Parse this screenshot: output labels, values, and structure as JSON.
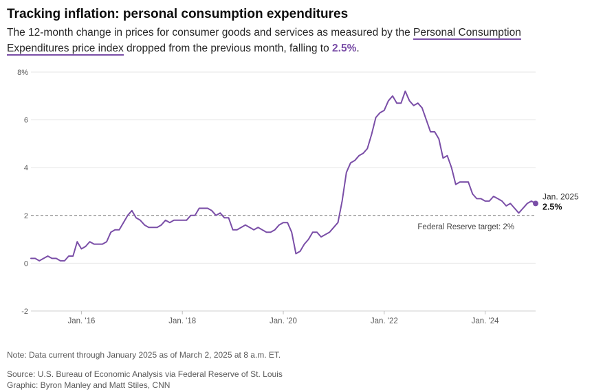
{
  "header": {
    "title": "Tracking inflation: personal consumption expenditures",
    "subtitle_before": "The 12-month change in prices for consumer goods and services as measured by the ",
    "subtitle_link": "Personal Consumption Expenditures price index",
    "subtitle_after": " dropped from the previous month, falling to ",
    "subtitle_value": "2.5%",
    "subtitle_end": "."
  },
  "footer": {
    "note": "Note: Data current through January 2025 as of March 2, 2025 at 8 a.m. ET.",
    "source": "Source: U.S. Bureau of Economic Analysis via Federal Reserve of St. Louis",
    "graphic": "Graphic: Byron Manley and Matt Stiles, CNN"
  },
  "colors": {
    "line": "#7a4ea7",
    "grid": "#e6e6e6",
    "target_line": "#777777",
    "text": "#262626",
    "muted": "#595959"
  },
  "chart_data": {
    "type": "line",
    "x_unit": "month",
    "xlim": [
      "2015-01",
      "2025-01"
    ],
    "ylim": [
      -2,
      8
    ],
    "yticks": [
      {
        "value": -2,
        "label": "-2"
      },
      {
        "value": 0,
        "label": "0"
      },
      {
        "value": 2,
        "label": "2"
      },
      {
        "value": 4,
        "label": "4"
      },
      {
        "value": 6,
        "label": "6"
      },
      {
        "value": 8,
        "label": "8%"
      }
    ],
    "xticks": [
      {
        "value": "2016-01",
        "label": "Jan. '16"
      },
      {
        "value": "2018-01",
        "label": "Jan. '18"
      },
      {
        "value": "2020-01",
        "label": "Jan. '20"
      },
      {
        "value": "2022-01",
        "label": "Jan. '22"
      },
      {
        "value": "2024-01",
        "label": "Jan. '24"
      }
    ],
    "grid": true,
    "reference_line": {
      "value": 2,
      "label": "Federal Reserve target: 2%"
    },
    "end_label": {
      "date": "Jan. 2025",
      "value": "2.5%"
    },
    "series": [
      {
        "x": [
          "2015-01",
          "2015-02",
          "2015-03",
          "2015-04",
          "2015-05",
          "2015-06",
          "2015-07",
          "2015-08",
          "2015-09",
          "2015-10",
          "2015-11",
          "2015-12",
          "2016-01",
          "2016-02",
          "2016-03",
          "2016-04",
          "2016-05",
          "2016-06",
          "2016-07",
          "2016-08",
          "2016-09",
          "2016-10",
          "2016-11",
          "2016-12",
          "2017-01",
          "2017-02",
          "2017-03",
          "2017-04",
          "2017-05",
          "2017-06",
          "2017-07",
          "2017-08",
          "2017-09",
          "2017-10",
          "2017-11",
          "2017-12",
          "2018-01",
          "2018-02",
          "2018-03",
          "2018-04",
          "2018-05",
          "2018-06",
          "2018-07",
          "2018-08",
          "2018-09",
          "2018-10",
          "2018-11",
          "2018-12",
          "2019-01",
          "2019-02",
          "2019-03",
          "2019-04",
          "2019-05",
          "2019-06",
          "2019-07",
          "2019-08",
          "2019-09",
          "2019-10",
          "2019-11",
          "2019-12",
          "2020-01",
          "2020-02",
          "2020-03",
          "2020-04",
          "2020-05",
          "2020-06",
          "2020-07",
          "2020-08",
          "2020-09",
          "2020-10",
          "2020-11",
          "2020-12",
          "2021-01",
          "2021-02",
          "2021-03",
          "2021-04",
          "2021-05",
          "2021-06",
          "2021-07",
          "2021-08",
          "2021-09",
          "2021-10",
          "2021-11",
          "2021-12",
          "2022-01",
          "2022-02",
          "2022-03",
          "2022-04",
          "2022-05",
          "2022-06",
          "2022-07",
          "2022-08",
          "2022-09",
          "2022-10",
          "2022-11",
          "2022-12",
          "2023-01",
          "2023-02",
          "2023-03",
          "2023-04",
          "2023-05",
          "2023-06",
          "2023-07",
          "2023-08",
          "2023-09",
          "2023-10",
          "2023-11",
          "2023-12",
          "2024-01",
          "2024-02",
          "2024-03",
          "2024-04",
          "2024-05",
          "2024-06",
          "2024-07",
          "2024-08",
          "2024-09",
          "2024-10",
          "2024-11",
          "2024-12",
          "2025-01"
        ],
        "values": [
          0.2,
          0.2,
          0.1,
          0.2,
          0.3,
          0.2,
          0.2,
          0.1,
          0.1,
          0.3,
          0.3,
          0.9,
          0.6,
          0.7,
          0.9,
          0.8,
          0.8,
          0.8,
          0.9,
          1.3,
          1.4,
          1.4,
          1.7,
          2.0,
          2.2,
          1.9,
          1.8,
          1.6,
          1.5,
          1.5,
          1.5,
          1.6,
          1.8,
          1.7,
          1.8,
          1.8,
          1.8,
          1.8,
          2.0,
          2.0,
          2.3,
          2.3,
          2.3,
          2.2,
          2.0,
          2.1,
          1.9,
          1.9,
          1.4,
          1.4,
          1.5,
          1.6,
          1.5,
          1.4,
          1.5,
          1.4,
          1.3,
          1.3,
          1.4,
          1.6,
          1.7,
          1.7,
          1.3,
          0.4,
          0.5,
          0.8,
          1.0,
          1.3,
          1.3,
          1.1,
          1.2,
          1.3,
          1.5,
          1.7,
          2.6,
          3.8,
          4.2,
          4.3,
          4.5,
          4.6,
          4.8,
          5.4,
          6.1,
          6.3,
          6.4,
          6.8,
          7.0,
          6.7,
          6.7,
          7.2,
          6.8,
          6.6,
          6.7,
          6.5,
          6.0,
          5.5,
          5.5,
          5.2,
          4.4,
          4.5,
          4.0,
          3.3,
          3.4,
          3.4,
          3.4,
          2.9,
          2.7,
          2.7,
          2.6,
          2.6,
          2.8,
          2.7,
          2.6,
          2.4,
          2.5,
          2.3,
          2.1,
          2.3,
          2.5,
          2.6,
          2.5
        ]
      }
    ]
  }
}
